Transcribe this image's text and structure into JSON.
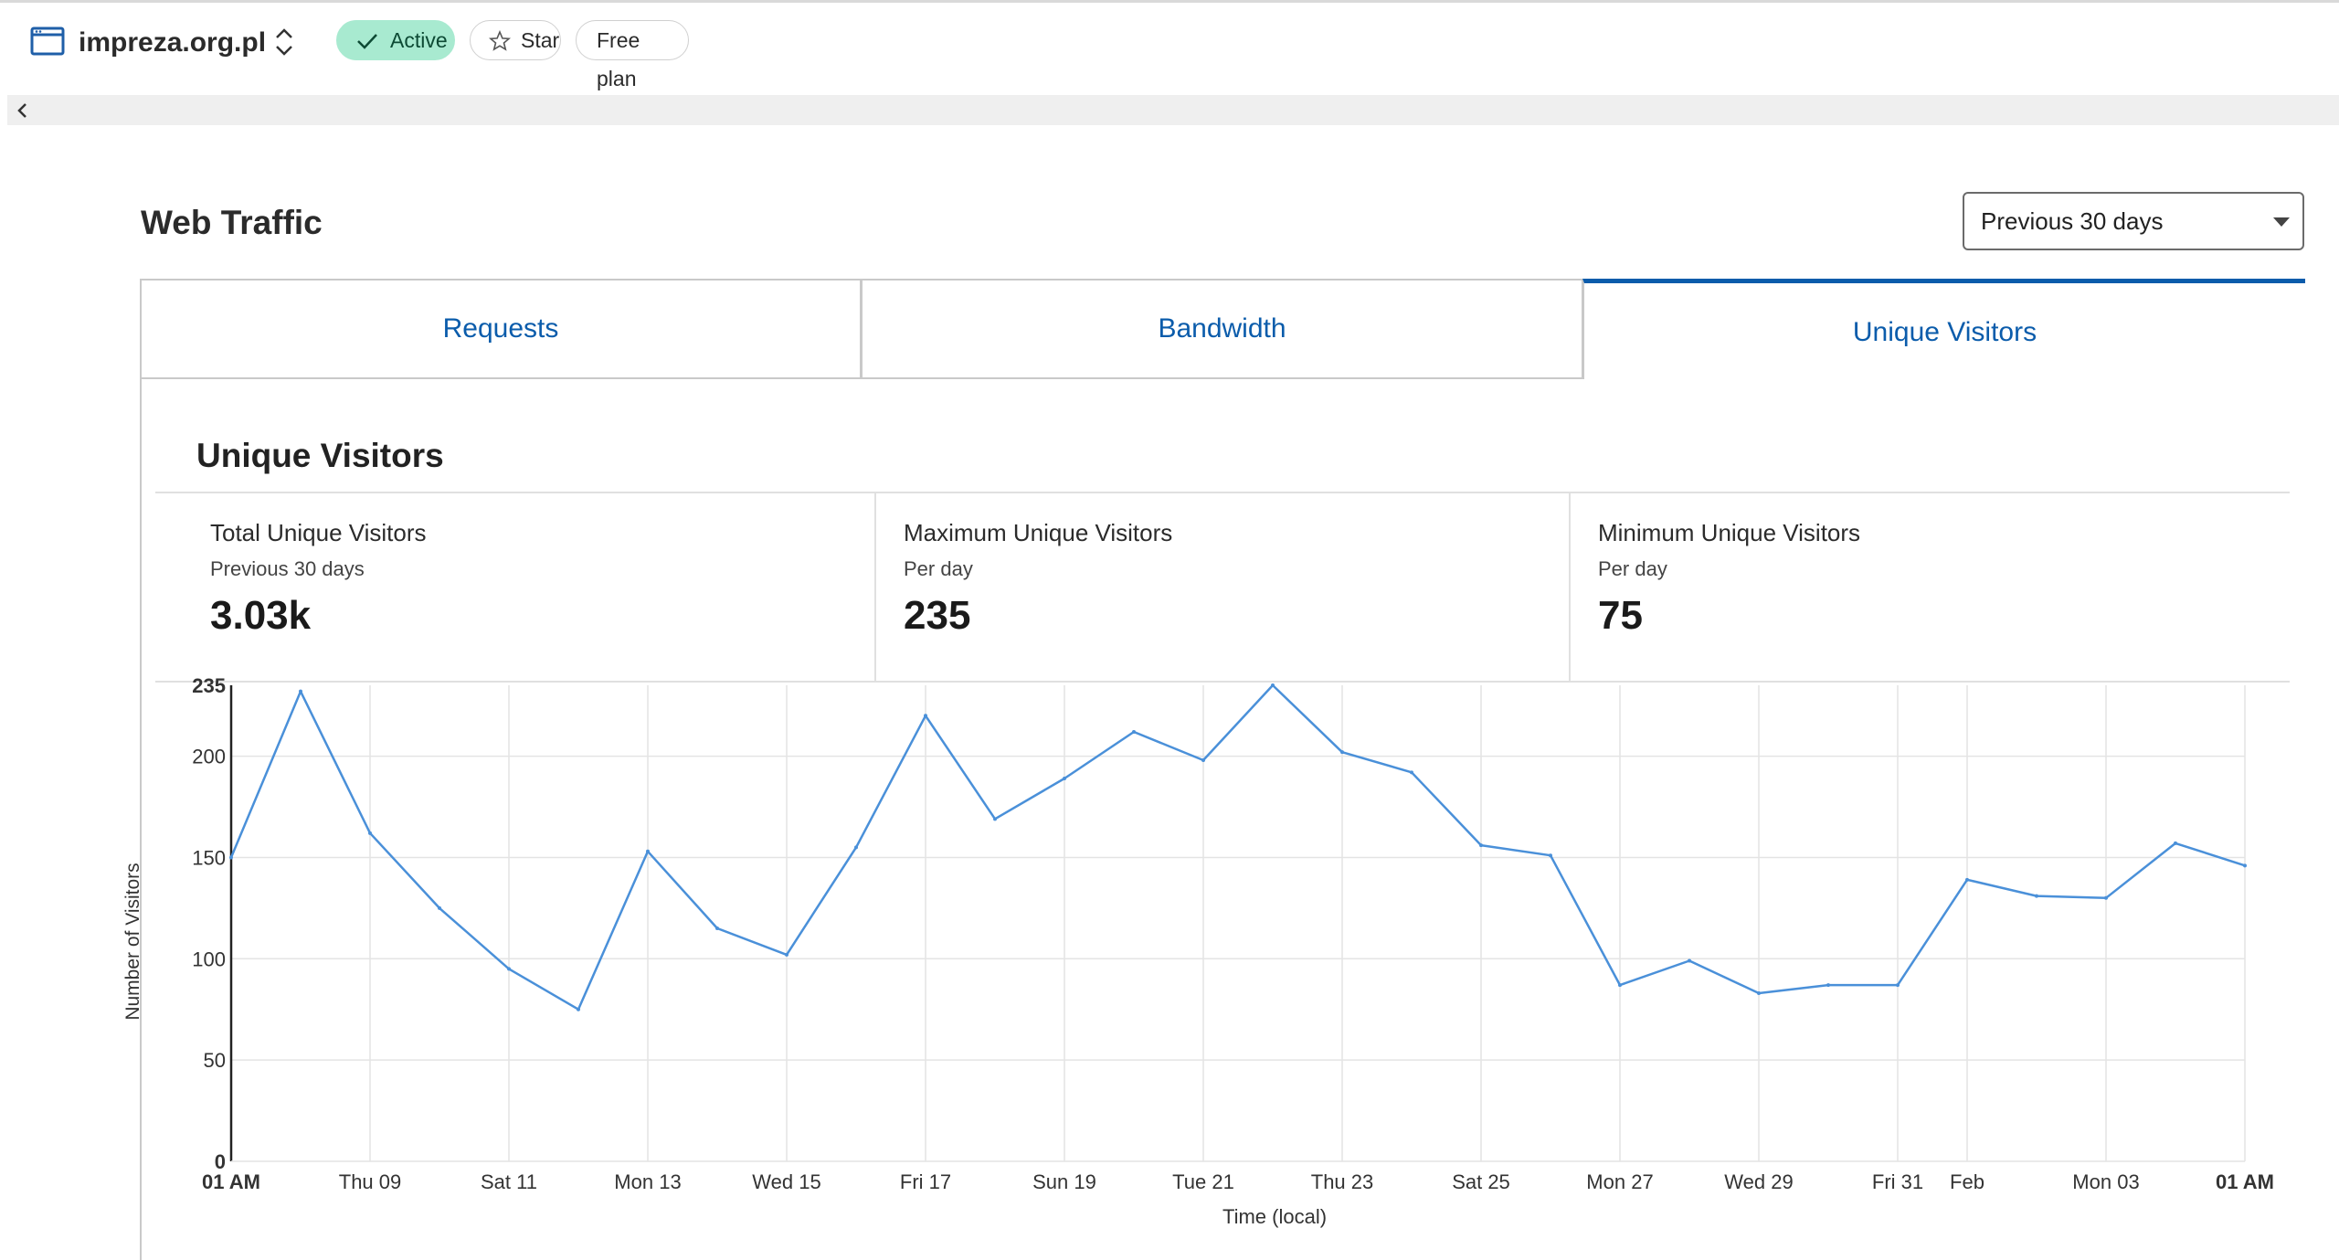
{
  "header": {
    "site_name": "impreza.org.pl",
    "status_label": "Active",
    "star_label": "Star",
    "plan_label": "Free plan"
  },
  "page": {
    "title": "Web Traffic",
    "range_selected": "Previous 30 days"
  },
  "tabs": [
    {
      "label": "Requests",
      "active": false
    },
    {
      "label": "Bandwidth",
      "active": false
    },
    {
      "label": "Unique Visitors",
      "active": true
    }
  ],
  "visitors": {
    "title": "Unique Visitors",
    "stats": [
      {
        "label": "Total Unique Visitors",
        "sub": "Previous 30 days",
        "value": "3.03k"
      },
      {
        "label": "Maximum Unique Visitors",
        "sub": "Per day",
        "value": "235"
      },
      {
        "label": "Minimum Unique Visitors",
        "sub": "Per day",
        "value": "75"
      }
    ]
  },
  "colors": {
    "accent": "#0b5cab",
    "active_badge_bg": "#a8ead0",
    "line": "#4a90d9"
  },
  "icons": [
    "browser-window-icon",
    "switch-site-icon",
    "checkmark-icon",
    "star-icon",
    "chevron-left-icon",
    "dropdown-caret-icon"
  ],
  "chart_data": {
    "type": "line",
    "ylabel": "Number of Visitors",
    "xlabel": "Time (local)",
    "ylim": [
      0,
      235
    ],
    "yticks": [
      0,
      50,
      100,
      150,
      200,
      235
    ],
    "grid": true,
    "x_tick_labels": [
      "01 AM",
      "Thu 09",
      "Sat 11",
      "Mon 13",
      "Wed 15",
      "Fri 17",
      "Sun 19",
      "Tue 21",
      "Thu 23",
      "Sat 25",
      "Mon 27",
      "Wed 29",
      "Fri 31",
      "Feb",
      "Mon 03",
      "01 AM"
    ],
    "series": [
      {
        "values": [
          150,
          232,
          162,
          125,
          95,
          75,
          153,
          115,
          102,
          155,
          220,
          169,
          189,
          212,
          198,
          235,
          202,
          192,
          156,
          151,
          87,
          99,
          83,
          87,
          87,
          139,
          131,
          130,
          157,
          146
        ]
      }
    ]
  }
}
